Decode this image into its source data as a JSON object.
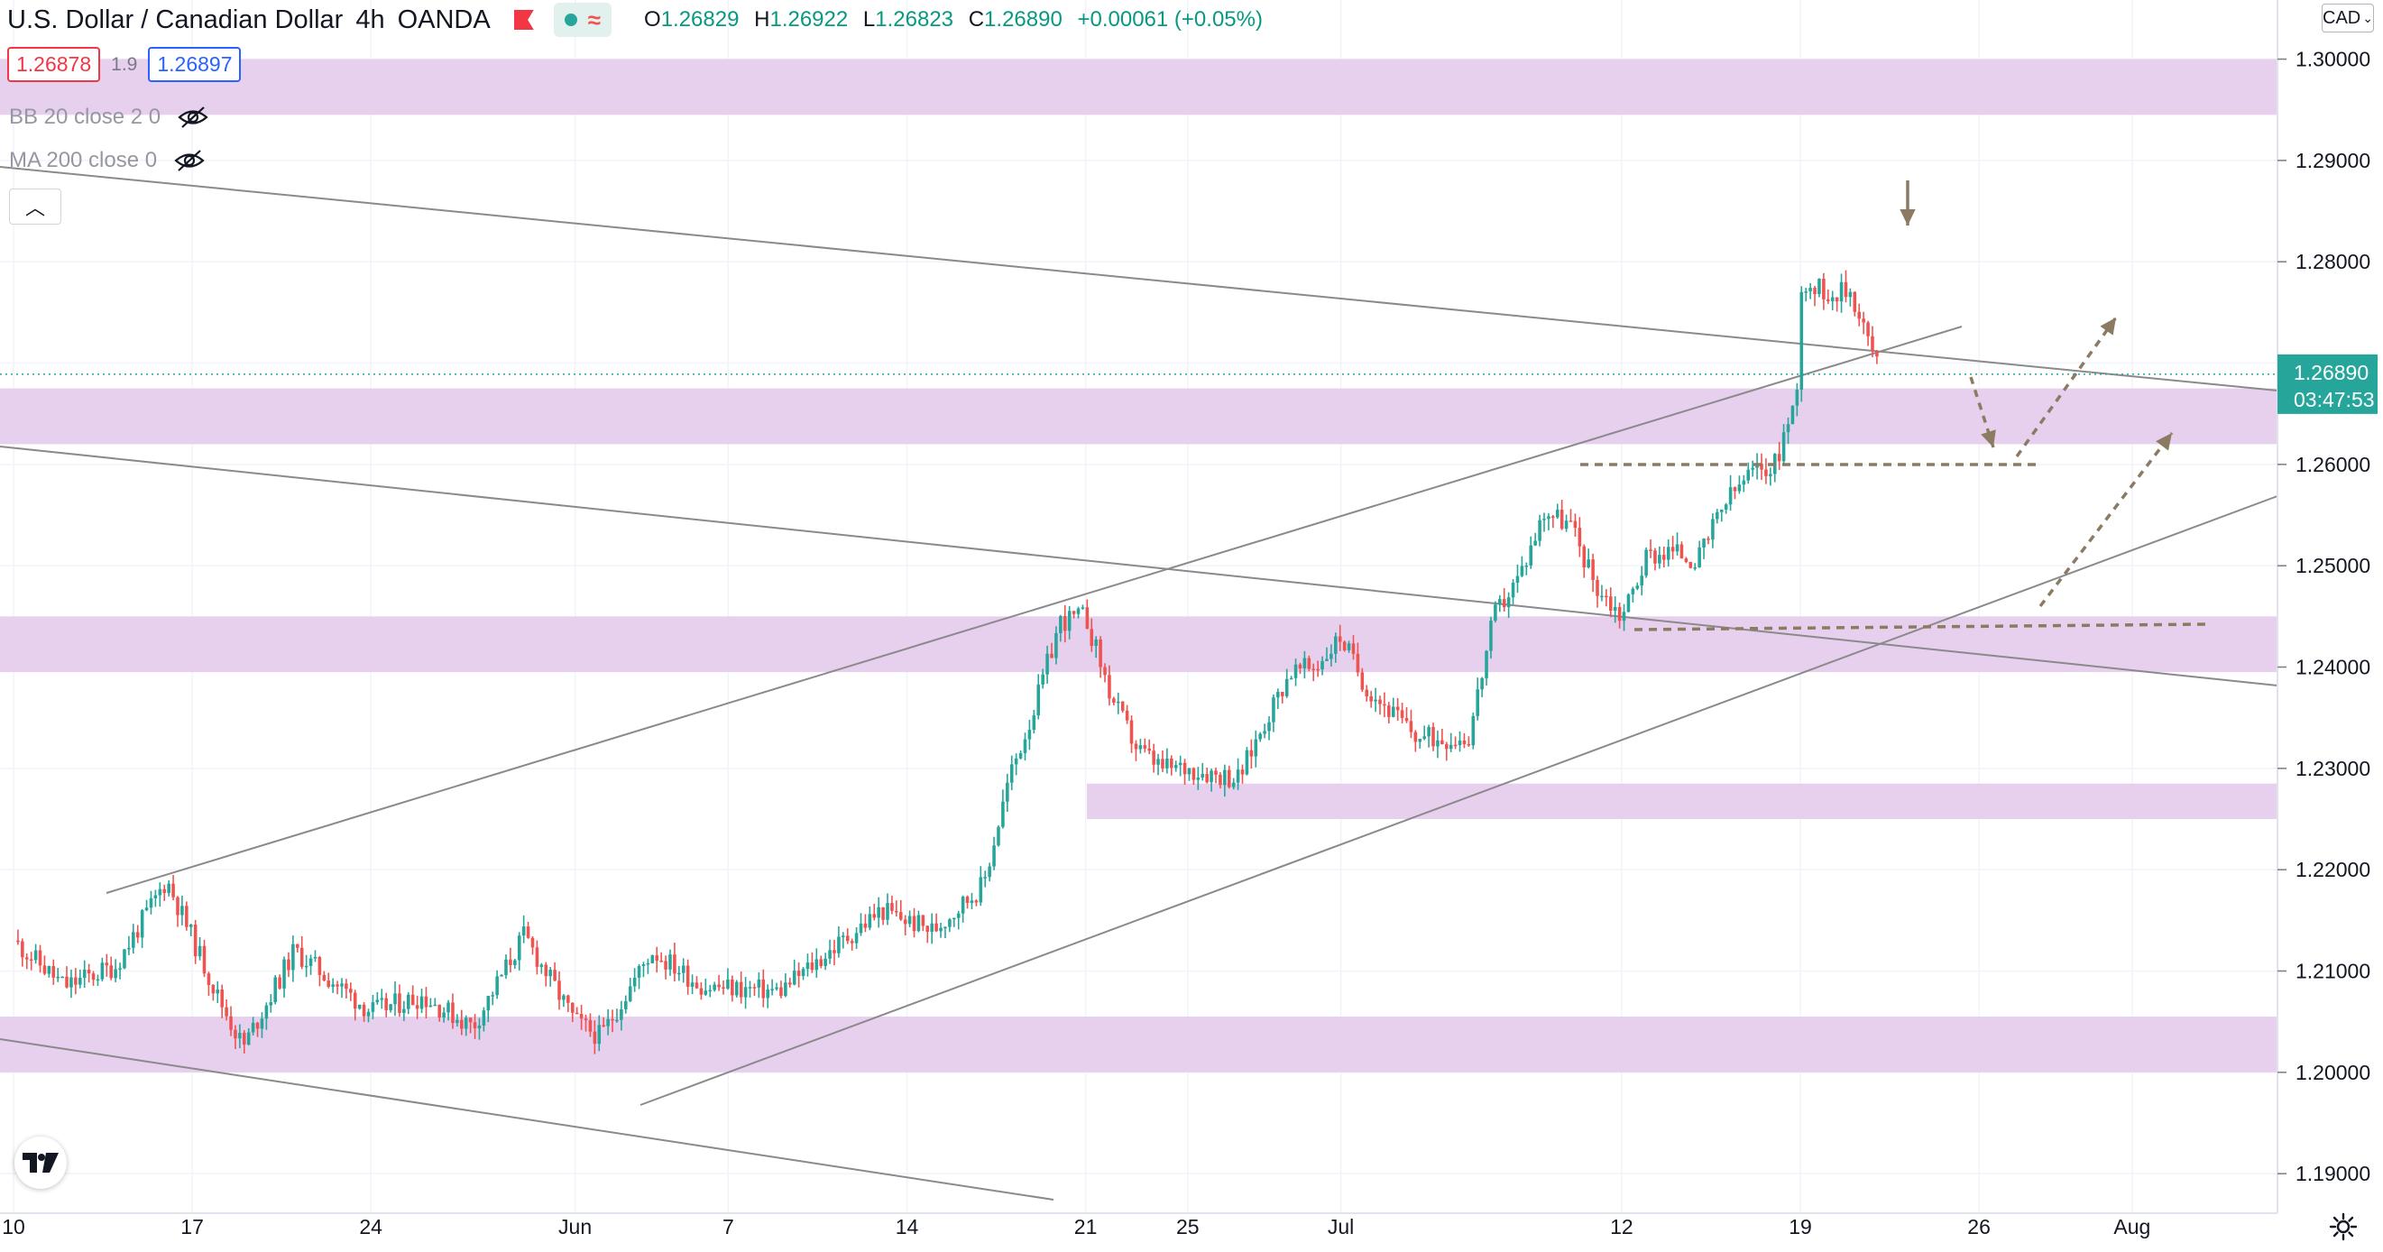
{
  "header": {
    "symbol": "U.S. Dollar / Canadian Dollar",
    "interval": "4h",
    "broker": "OANDA",
    "ohlc": {
      "o_label": "O",
      "o": "1.26829",
      "h_label": "H",
      "h": "1.26922",
      "l_label": "L",
      "l": "1.26823",
      "c_label": "C",
      "c": "1.26890",
      "change": "+0.00061 (+0.05%)"
    }
  },
  "trade": {
    "sell": "1.26878",
    "spread": "1.9",
    "buy": "1.26897"
  },
  "indicators": [
    {
      "label": "BB 20 close 2 0",
      "icon": "eye-off-icon"
    },
    {
      "label": "MA 200 close 0",
      "icon": "eye-off-icon"
    }
  ],
  "currency": {
    "label": "CAD"
  },
  "last_price": {
    "value": "1.26890",
    "countdown": "03:47:53",
    "color": "#26a69a"
  },
  "colors": {
    "up": "#26a69a",
    "down": "#ef5350",
    "zone": "#e7cfee",
    "trend_line": "#8a8a8a",
    "annotation": "#8b7b63",
    "grid": "#f0f3fa"
  },
  "icons": {
    "flag": "flag-icon",
    "status": "market-open-dot-icon",
    "wave": "wave-icon",
    "collapse": "chevron-up-icon",
    "logo": "tradingview-logo-icon",
    "settings": "gear-icon",
    "currency_menu": "chevron-down-icon"
  },
  "chart_data": {
    "type": "candlestick",
    "y_axis": {
      "ticks": [
        "1.30000",
        "1.29000",
        "1.28000",
        "1.27000",
        "1.26000",
        "1.25000",
        "1.24000",
        "1.23000",
        "1.22000",
        "1.21000",
        "1.20000",
        "1.19000"
      ],
      "range": [
        1.1885,
        1.3045
      ]
    },
    "x_axis": {
      "ticks": [
        "10",
        "17",
        "24",
        "Jun",
        "7",
        "14",
        "21",
        "25",
        "Jul",
        "12",
        "19",
        "26",
        "Aug"
      ],
      "tick_dates": [
        "2021-05-10",
        "2021-05-17",
        "2021-05-24",
        "2021-06-01",
        "2021-06-07",
        "2021-06-14",
        "2021-06-21",
        "2021-06-25",
        "2021-07-01",
        "2021-07-12",
        "2021-07-19",
        "2021-07-26",
        "2021-08-01"
      ]
    },
    "closes": [
      {
        "date": "2021-05-10",
        "close": 1.213
      },
      {
        "date": "2021-05-12",
        "close": 1.2085
      },
      {
        "date": "2021-05-14",
        "close": 1.2105
      },
      {
        "date": "2021-05-16",
        "close": 1.219
      },
      {
        "date": "2021-05-18",
        "close": 1.2075
      },
      {
        "date": "2021-05-19",
        "close": 1.2025
      },
      {
        "date": "2021-05-21",
        "close": 1.212
      },
      {
        "date": "2021-05-24",
        "close": 1.206
      },
      {
        "date": "2021-05-26",
        "close": 1.2075
      },
      {
        "date": "2021-05-28",
        "close": 1.2045
      },
      {
        "date": "2021-05-30",
        "close": 1.2135
      },
      {
        "date": "2021-06-01",
        "close": 1.205
      },
      {
        "date": "2021-06-02",
        "close": 1.2035
      },
      {
        "date": "2021-06-04",
        "close": 1.212
      },
      {
        "date": "2021-06-06",
        "close": 1.2085
      },
      {
        "date": "2021-06-09",
        "close": 1.208
      },
      {
        "date": "2021-06-11",
        "close": 1.212
      },
      {
        "date": "2021-06-13",
        "close": 1.216
      },
      {
        "date": "2021-06-15",
        "close": 1.214
      },
      {
        "date": "2021-06-17",
        "close": 1.2185
      },
      {
        "date": "2021-06-18",
        "close": 1.229
      },
      {
        "date": "2021-06-19",
        "close": 1.236
      },
      {
        "date": "2021-06-20",
        "close": 1.2445
      },
      {
        "date": "2021-06-21",
        "close": 1.245
      },
      {
        "date": "2021-06-22",
        "close": 1.237
      },
      {
        "date": "2021-06-23",
        "close": 1.232
      },
      {
        "date": "2021-06-24",
        "close": 1.23
      },
      {
        "date": "2021-06-25",
        "close": 1.23
      },
      {
        "date": "2021-06-27",
        "close": 1.229
      },
      {
        "date": "2021-06-28",
        "close": 1.2345
      },
      {
        "date": "2021-06-29",
        "close": 1.2395
      },
      {
        "date": "2021-06-30",
        "close": 1.24
      },
      {
        "date": "2021-07-01",
        "close": 1.243
      },
      {
        "date": "2021-07-02",
        "close": 1.238
      },
      {
        "date": "2021-07-04",
        "close": 1.233
      },
      {
        "date": "2021-07-06",
        "close": 1.233
      },
      {
        "date": "2021-07-07",
        "close": 1.245
      },
      {
        "date": "2021-07-08",
        "close": 1.249
      },
      {
        "date": "2021-07-09",
        "close": 1.2555
      },
      {
        "date": "2021-07-10",
        "close": 1.254
      },
      {
        "date": "2021-07-11",
        "close": 1.248
      },
      {
        "date": "2021-07-12",
        "close": 1.245
      },
      {
        "date": "2021-07-13",
        "close": 1.251
      },
      {
        "date": "2021-07-14",
        "close": 1.2515
      },
      {
        "date": "2021-07-15",
        "close": 1.2505
      },
      {
        "date": "2021-07-16",
        "close": 1.256
      },
      {
        "date": "2021-07-17",
        "close": 1.259
      },
      {
        "date": "2021-07-18",
        "close": 1.26
      },
      {
        "date": "2021-07-19",
        "close": 1.268
      },
      {
        "date": "2021-07-19",
        "close": 1.278
      },
      {
        "date": "2021-07-20",
        "close": 1.277
      },
      {
        "date": "2021-07-21",
        "close": 1.277
      },
      {
        "date": "2021-07-22",
        "close": 1.27
      },
      {
        "date": "2021-07-22",
        "close": 1.2689
      }
    ]
  }
}
